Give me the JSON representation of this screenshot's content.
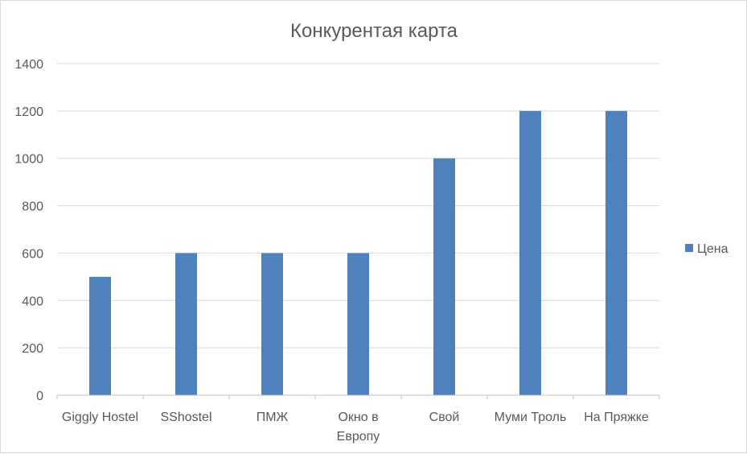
{
  "chart_data": {
    "type": "bar",
    "title": "Конкурентая карта",
    "categories": [
      "Giggly Hostel",
      "SShostel",
      "ПМЖ",
      "Окно в Европу",
      "Свой",
      "Муми Троль",
      "На Пряжке"
    ],
    "series": [
      {
        "name": "Цена",
        "values": [
          500,
          600,
          600,
          600,
          1000,
          1200,
          1200
        ],
        "color": "#4f81bd"
      }
    ],
    "ylim": [
      0,
      1400
    ],
    "yticks": [
      0,
      200,
      400,
      600,
      800,
      1000,
      1200,
      1400
    ],
    "grid": true,
    "legend": "right",
    "colors": {
      "grid": "#d9d9d9",
      "axis": "#bfbfbf",
      "text": "#595959"
    }
  }
}
